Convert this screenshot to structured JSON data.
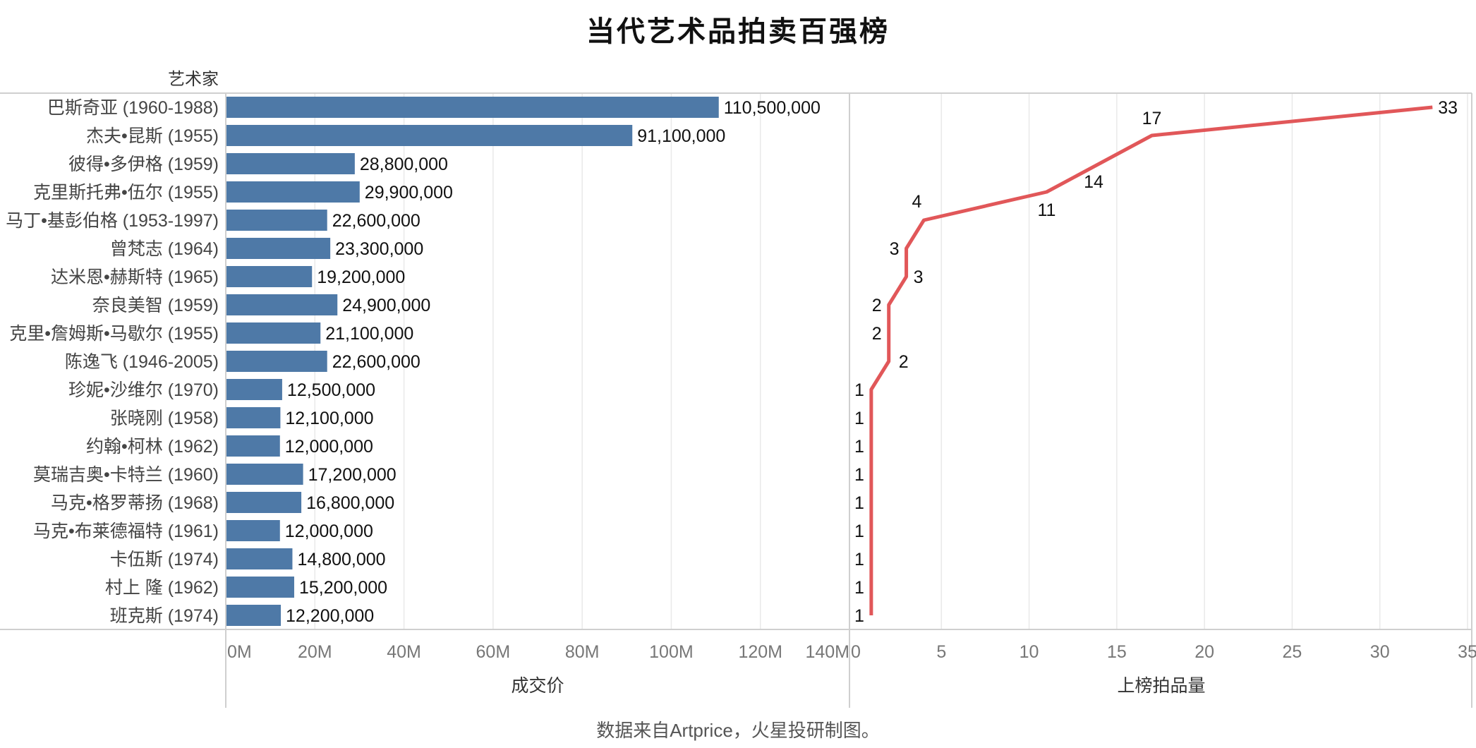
{
  "title": "当代艺术品拍卖百强榜",
  "caption": "数据来自Artprice，火星投研制图。",
  "colors": {
    "bar": "#4e79a7",
    "line": "#e15759"
  },
  "chart_data": [
    {
      "type": "bar",
      "orientation": "horizontal",
      "row_header": "艺术家",
      "xlabel": "成交价",
      "xlim": [
        0,
        140000000
      ],
      "tick_values": [
        0,
        20000000,
        40000000,
        60000000,
        80000000,
        100000000,
        120000000,
        140000000
      ],
      "tick_labels": [
        "0M",
        "20M",
        "40M",
        "60M",
        "80M",
        "100M",
        "120M",
        "140M"
      ],
      "grid": true,
      "categories": [
        "巴斯奇亚 (1960-1988)",
        "杰夫•昆斯 (1955)",
        "彼得•多伊格 (1959)",
        "克里斯托弗•伍尔 (1955)",
        "马丁•基彭伯格 (1953-1997)",
        "曾梵志 (1964)",
        "达米恩•赫斯特 (1965)",
        "奈良美智 (1959)",
        "克里•詹姆斯•马歇尔 (1955)",
        "陈逸飞 (1946-2005)",
        "珍妮•沙维尔 (1970)",
        "张晓刚 (1958)",
        "约翰•柯林 (1962)",
        "莫瑞吉奥•卡特兰 (1960)",
        "马克•格罗蒂扬 (1968)",
        "马克•布莱德福特 (1961)",
        "卡伍斯 (1974)",
        "村上 隆 (1962)",
        "班克斯 (1974)"
      ],
      "values": [
        110500000,
        91100000,
        28800000,
        29900000,
        22600000,
        23300000,
        19200000,
        24900000,
        21100000,
        22600000,
        12500000,
        12100000,
        12000000,
        17200000,
        16800000,
        12000000,
        14800000,
        15200000,
        12200000
      ],
      "value_labels": [
        "110,500,000",
        "91,100,000",
        "28,800,000",
        "29,900,000",
        "22,600,000",
        "23,300,000",
        "19,200,000",
        "24,900,000",
        "21,100,000",
        "22,600,000",
        "12,500,000",
        "12,100,000",
        "12,000,000",
        "17,200,000",
        "16,800,000",
        "12,000,000",
        "14,800,000",
        "15,200,000",
        "12,200,000"
      ]
    },
    {
      "type": "line",
      "xlabel": "上榜拍品量",
      "xlim": [
        0,
        35
      ],
      "tick_values": [
        0,
        5,
        10,
        15,
        20,
        25,
        30,
        35
      ],
      "tick_labels": [
        "0",
        "5",
        "10",
        "15",
        "20",
        "25",
        "30",
        "35"
      ],
      "grid": true,
      "values": [
        33,
        17,
        14,
        11,
        4,
        3,
        3,
        2,
        2,
        2,
        1,
        1,
        1,
        1,
        1,
        1,
        1,
        1,
        1
      ],
      "value_labels": [
        "33",
        "17",
        "14",
        "11",
        "4",
        "3",
        "3",
        "2",
        "2",
        "2",
        "1",
        "1",
        "1",
        "1",
        "1",
        "1",
        "1",
        "1",
        "1"
      ]
    }
  ]
}
